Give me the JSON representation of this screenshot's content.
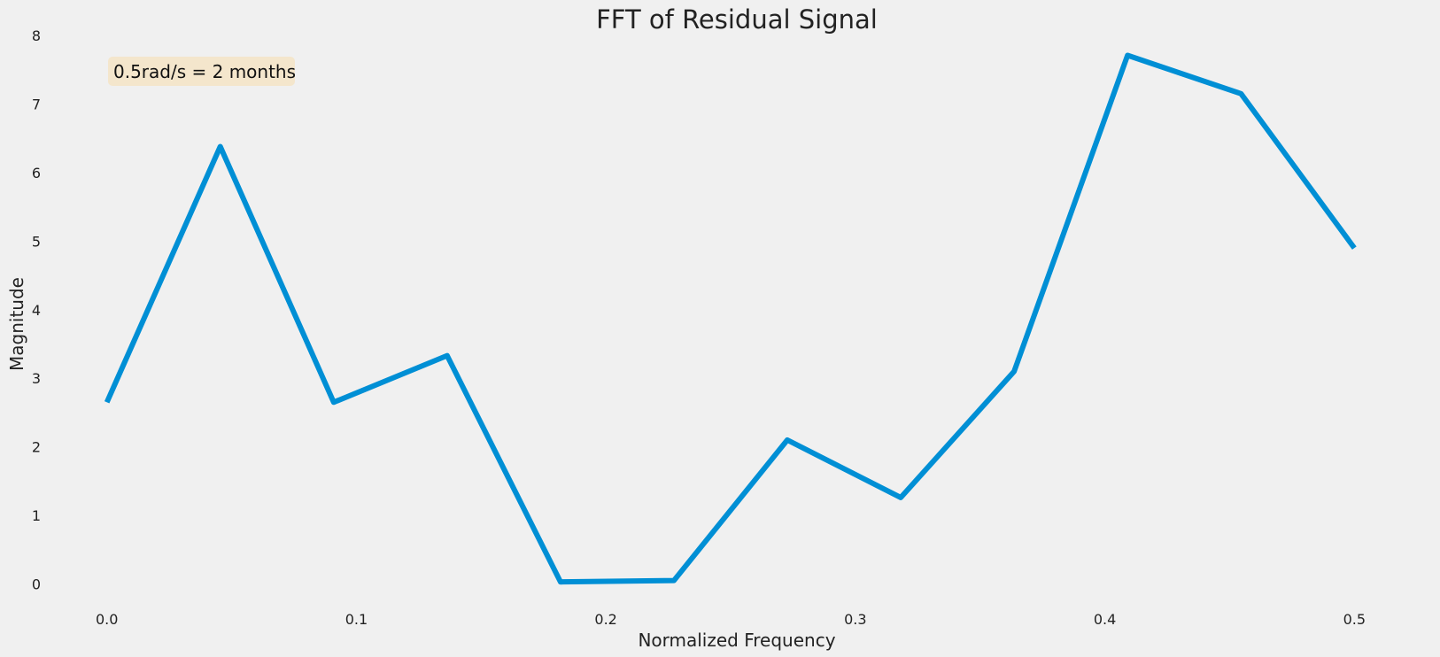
{
  "chart_data": {
    "type": "line",
    "title": "FFT of Residual Signal",
    "xlabel": "Normalized Frequency",
    "ylabel": "Magnitude",
    "xlim": [
      -0.018,
      0.518
    ],
    "ylim": [
      -0.2,
      8.0
    ],
    "xticks": [
      0.0,
      0.1,
      0.2,
      0.3,
      0.4,
      0.5
    ],
    "xtick_labels": [
      "0.0",
      "0.1",
      "0.2",
      "0.3",
      "0.4",
      "0.5"
    ],
    "yticks": [
      0,
      1,
      2,
      3,
      4,
      5,
      6,
      7,
      8
    ],
    "ytick_labels": [
      "0",
      "1",
      "2",
      "3",
      "4",
      "5",
      "6",
      "7",
      "8"
    ],
    "grid": false,
    "annotation": {
      "text": "0.5rad/s = 2 months",
      "box_color": "#f4e6cc"
    },
    "series": [
      {
        "color": "#008fd5",
        "x": [
          0.0,
          0.04545,
          0.09091,
          0.13636,
          0.18182,
          0.22727,
          0.27273,
          0.31818,
          0.36364,
          0.40909,
          0.45455,
          0.5
        ],
        "y": [
          2.65,
          6.38,
          2.65,
          3.33,
          0.03,
          0.05,
          2.1,
          1.26,
          3.1,
          7.71,
          7.15,
          4.9
        ]
      }
    ]
  }
}
